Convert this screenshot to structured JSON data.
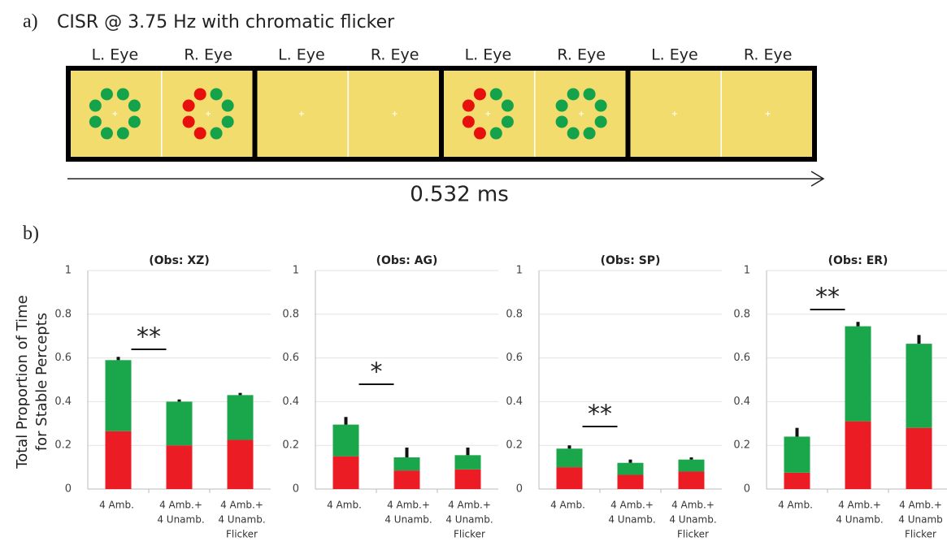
{
  "diagram": {
    "label": "a)",
    "title": "CISR @ 3.75 Hz with chromatic flicker",
    "eye_labels": [
      "L. Eye",
      "R. Eye",
      "L. Eye",
      "R. Eye",
      "L. Eye",
      "R. Eye",
      "L. Eye",
      "R. Eye"
    ],
    "duration": "0.532 ms"
  },
  "panel_b_label": "b)",
  "chart_data": [
    {
      "type": "bar",
      "stacked": true,
      "title": "(Obs: XZ)",
      "ylabel": [
        "Total Proportion of Time",
        "for Stable Percepts"
      ],
      "categories": [
        [
          "4  Amb."
        ],
        [
          "4 Amb.+",
          "4 Unamb."
        ],
        [
          "4 Amb.+",
          "4 Unamb.",
          "Flicker"
        ]
      ],
      "series": [
        {
          "color": "#ec1c24",
          "values": [
            0.265,
            0.2,
            0.225
          ]
        },
        {
          "color": "#1aa64a",
          "values": [
            0.325,
            0.2,
            0.205
          ],
          "errors": [
            0.015,
            0.01,
            0.01
          ]
        }
      ],
      "annotation": "**",
      "ylim": [
        0,
        1
      ],
      "yticks": [
        0,
        0.2,
        0.4,
        0.6,
        0.8,
        1
      ],
      "grid": true
    },
    {
      "type": "bar",
      "stacked": true,
      "title": "(Obs: AG)",
      "categories": [
        [
          "4 Amb."
        ],
        [
          "4 Amb.+",
          "4 Unamb."
        ],
        [
          "4 Amb.+",
          "4 Unamb.",
          "Flicker"
        ]
      ],
      "series": [
        {
          "color": "#ec1c24",
          "values": [
            0.15,
            0.085,
            0.09
          ]
        },
        {
          "color": "#1aa64a",
          "values": [
            0.145,
            0.06,
            0.065
          ],
          "errors": [
            0.035,
            0.045,
            0.035
          ]
        }
      ],
      "annotation": "*",
      "ylim": [
        0,
        1
      ],
      "yticks": [
        0,
        0.2,
        0.4,
        0.6,
        0.8,
        1
      ],
      "grid": true
    },
    {
      "type": "bar",
      "stacked": true,
      "title": "(Obs: SP)",
      "categories": [
        [
          "4 Amb."
        ],
        [
          "4 Amb.+",
          "4 Unamb."
        ],
        [
          "4 Amb.+",
          "4 Unamb.",
          "Flicker"
        ]
      ],
      "series": [
        {
          "color": "#ec1c24",
          "values": [
            0.1,
            0.065,
            0.08
          ]
        },
        {
          "color": "#1aa64a",
          "values": [
            0.085,
            0.055,
            0.055
          ],
          "errors": [
            0.015,
            0.015,
            0.01
          ]
        }
      ],
      "annotation": "**",
      "ylim": [
        0,
        1
      ],
      "yticks": [
        0,
        0.2,
        0.4,
        0.6,
        0.8,
        1
      ],
      "grid": true
    },
    {
      "type": "bar",
      "stacked": true,
      "title": "(Obs: ER)",
      "categories": [
        [
          "4 Amb."
        ],
        [
          "4 Amb.+",
          "4 Unamb."
        ],
        [
          "4 Amb.+",
          "4 Unamb",
          "Flicker"
        ]
      ],
      "series": [
        {
          "color": "#ec1c24",
          "values": [
            0.075,
            0.31,
            0.28
          ]
        },
        {
          "color": "#1aa64a",
          "values": [
            0.165,
            0.435,
            0.385
          ],
          "errors": [
            0.04,
            0.02,
            0.04
          ]
        }
      ],
      "annotation": "**",
      "ylim": [
        0,
        1
      ],
      "yticks": [
        0,
        0.2,
        0.4,
        0.6,
        0.8,
        1
      ],
      "grid": true
    }
  ]
}
